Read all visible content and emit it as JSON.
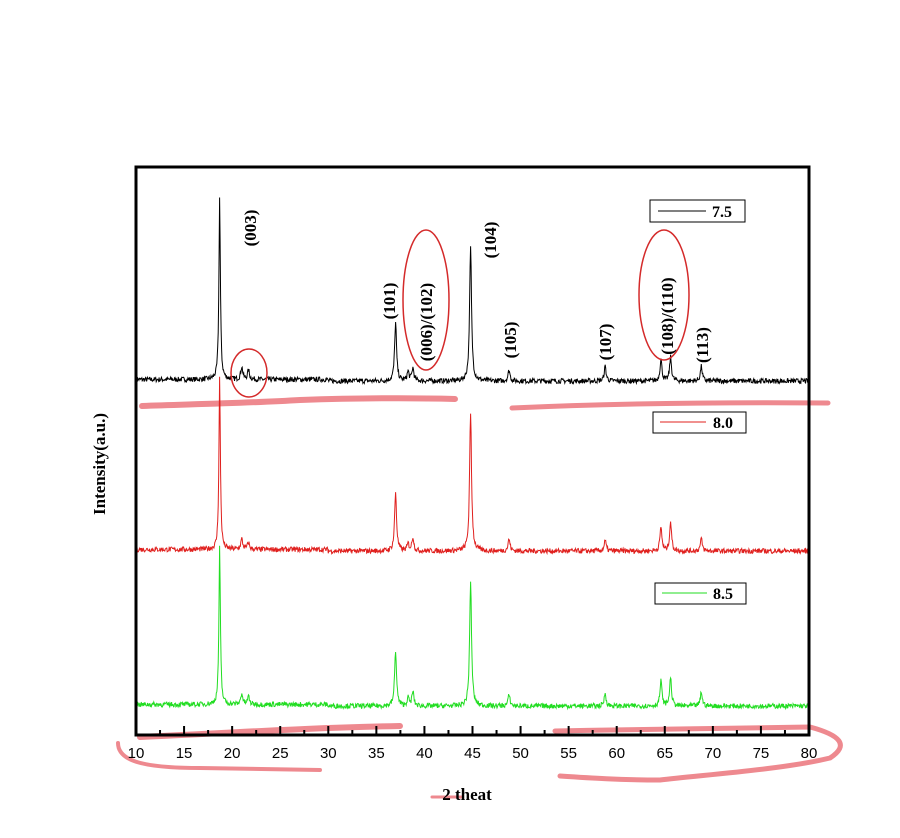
{
  "chart_data": {
    "type": "line",
    "title": "",
    "xlabel": "2 theat",
    "ylabel": "Intensity(a.u.)",
    "xlim": [
      10,
      80
    ],
    "x_ticks": [
      "10",
      "15",
      "20",
      "25",
      "30",
      "35",
      "40",
      "45",
      "50",
      "55",
      "60",
      "65",
      "70",
      "75",
      "80"
    ],
    "legend_placement": "right, beside each trace",
    "series": [
      {
        "name": "7.5",
        "color": "#000000",
        "peaks": [
          [
            18.7,
            1.0
          ],
          [
            21.0,
            0.07
          ],
          [
            21.7,
            0.05
          ],
          [
            37.0,
            0.32
          ],
          [
            38.3,
            0.05
          ],
          [
            38.8,
            0.07
          ],
          [
            44.8,
            0.73
          ],
          [
            48.8,
            0.06
          ],
          [
            58.8,
            0.08
          ],
          [
            64.6,
            0.12
          ],
          [
            65.6,
            0.13
          ],
          [
            68.8,
            0.08
          ]
        ]
      },
      {
        "name": "8.0",
        "color": "#e0201e",
        "peaks": [
          [
            18.7,
            1.0
          ],
          [
            21.0,
            0.06
          ],
          [
            21.7,
            0.04
          ],
          [
            37.0,
            0.34
          ],
          [
            38.3,
            0.04
          ],
          [
            38.8,
            0.08
          ],
          [
            44.8,
            0.8
          ],
          [
            48.8,
            0.07
          ],
          [
            58.8,
            0.06
          ],
          [
            64.6,
            0.14
          ],
          [
            65.6,
            0.17
          ],
          [
            68.8,
            0.07
          ]
        ]
      },
      {
        "name": "8.5",
        "color": "#22dd22",
        "peaks": [
          [
            18.7,
            1.0
          ],
          [
            21.0,
            0.07
          ],
          [
            21.7,
            0.05
          ],
          [
            37.0,
            0.35
          ],
          [
            38.3,
            0.05
          ],
          [
            38.8,
            0.09
          ],
          [
            44.8,
            0.78
          ],
          [
            48.8,
            0.07
          ],
          [
            58.8,
            0.08
          ],
          [
            64.6,
            0.16
          ],
          [
            65.6,
            0.18
          ],
          [
            68.8,
            0.09
          ]
        ]
      }
    ],
    "annotations": [
      "(003)",
      "(101)",
      "(006)/(102)",
      "(104)",
      "(105)",
      "(107)",
      "(108)/(110)",
      "(113)"
    ]
  }
}
